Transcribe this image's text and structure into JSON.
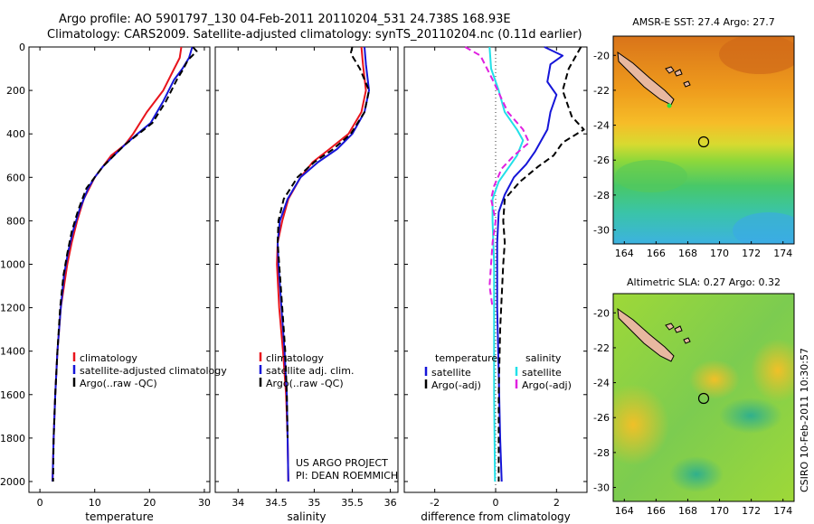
{
  "figure": {
    "title_line1": "Argo profile: AO 5901797_130 04-Feb-2011 20110204_531 24.738S 168.93E",
    "title_line2": "Climatology: CARS2009. Satellite-adjusted climatology: synTS_20110204.nc (0.11d earlier)",
    "side_label": "CSIRO 10-Feb-2011 10:30:57",
    "project_line1": "US ARGO PROJECT",
    "project_line2": "PI: DEAN ROEMMICH"
  },
  "colors": {
    "climatology": "#e8141c",
    "satellite": "#1515d8",
    "argo": "#000000",
    "satellite_sal": "#22e0e8",
    "argo_sal": "#e020e0"
  },
  "chart_data": [
    {
      "type": "line",
      "xlabel": "temperature",
      "ylabel": "",
      "xlim": [
        -2,
        31
      ],
      "ylim": [
        2050,
        0
      ],
      "y_reversed": true,
      "xticks": [
        0,
        10,
        20,
        30
      ],
      "yticks": [
        0,
        200,
        400,
        600,
        800,
        1000,
        1200,
        1400,
        1600,
        1800,
        2000
      ],
      "legend": {
        "position": "lower-right",
        "entries": [
          "climatology",
          "satellite-adjusted climatology",
          "Argo(..raw -QC)"
        ]
      },
      "series": [
        {
          "name": "climatology",
          "color": "#e8141c",
          "dash": "solid",
          "x": [
            25.8,
            25.5,
            24.5,
            22.5,
            19.5,
            17.0,
            15.5,
            13.0,
            11.5,
            10.0,
            9.0,
            8.0,
            6.8,
            5.8,
            5.0,
            4.4,
            3.8,
            3.2,
            2.8,
            2.5,
            2.4,
            2.3
          ],
          "y": [
            0,
            50,
            100,
            200,
            300,
            400,
            450,
            500,
            550,
            600,
            650,
            700,
            800,
            900,
            1000,
            1100,
            1200,
            1400,
            1600,
            1800,
            1900,
            2000
          ]
        },
        {
          "name": "satellite-adjusted climatology",
          "color": "#1515d8",
          "dash": "solid",
          "x": [
            27.8,
            27.2,
            26.0,
            24.5,
            22.5,
            20.2,
            17.8,
            15.5,
            13.5,
            11.5,
            10.0,
            8.8,
            7.2,
            6.0,
            5.1,
            4.4,
            3.8,
            3.2,
            2.8,
            2.5,
            2.4,
            2.3
          ],
          "y": [
            0,
            50,
            100,
            150,
            250,
            350,
            400,
            450,
            500,
            550,
            600,
            650,
            750,
            850,
            950,
            1050,
            1200,
            1400,
            1600,
            1800,
            1900,
            2000
          ]
        },
        {
          "name": "Argo(..raw -QC)",
          "color": "#000000",
          "dash": "dashed",
          "x": [
            27.9,
            28.6,
            27.0,
            26.2,
            25.0,
            23.0,
            20.5,
            18.0,
            15.5,
            13.5,
            11.5,
            10.0,
            8.5,
            7.0,
            5.8,
            5.0,
            4.3,
            3.7,
            3.2,
            2.8,
            2.5,
            2.4
          ],
          "y": [
            0,
            20,
            60,
            100,
            150,
            250,
            350,
            400,
            450,
            500,
            550,
            600,
            650,
            750,
            850,
            950,
            1050,
            1200,
            1400,
            1600,
            1800,
            2000
          ]
        }
      ]
    },
    {
      "type": "line",
      "xlabel": "salinity",
      "ylabel": "",
      "xlim": [
        33.7,
        36.1
      ],
      "ylim": [
        2050,
        0
      ],
      "y_reversed": true,
      "xticks": [
        34,
        34.5,
        35,
        35.5,
        36
      ],
      "yticks": [
        0,
        200,
        400,
        600,
        800,
        1000,
        1200,
        1400,
        1600,
        1800,
        2000
      ],
      "legend": {
        "position": "lower-right",
        "entries": [
          "climatology",
          "satellite adj. clim.",
          "Argo(..raw -QC)"
        ]
      },
      "series": [
        {
          "name": "climatology",
          "color": "#e8141c",
          "dash": "solid",
          "x": [
            35.62,
            35.64,
            35.68,
            35.62,
            35.45,
            35.2,
            34.98,
            34.82,
            34.66,
            34.58,
            34.52,
            34.51,
            34.54,
            34.59,
            34.63,
            34.65,
            34.66
          ],
          "y": [
            0,
            80,
            200,
            300,
            400,
            470,
            530,
            600,
            700,
            800,
            900,
            1000,
            1200,
            1400,
            1600,
            1800,
            2000
          ]
        },
        {
          "name": "satellite adj. clim.",
          "color": "#1515d8",
          "dash": "solid",
          "x": [
            35.66,
            35.68,
            35.72,
            35.66,
            35.5,
            35.3,
            35.05,
            34.82,
            34.65,
            34.55,
            34.52,
            34.53,
            34.57,
            34.61,
            34.64,
            34.65,
            34.66
          ],
          "y": [
            0,
            80,
            200,
            300,
            400,
            470,
            530,
            600,
            700,
            800,
            900,
            1000,
            1200,
            1400,
            1600,
            1800,
            2000
          ]
        },
        {
          "name": "Argo(..raw -QC)",
          "color": "#000000",
          "dash": "dashed",
          "x": [
            35.5,
            35.48,
            35.6,
            35.72,
            35.66,
            35.48,
            35.25,
            35.0,
            34.78,
            34.6,
            34.53,
            34.52,
            34.54,
            34.58,
            34.62,
            34.64,
            34.65
          ],
          "y": [
            0,
            30,
            100,
            200,
            300,
            400,
            470,
            530,
            600,
            700,
            800,
            900,
            1000,
            1200,
            1400,
            1600,
            1800
          ]
        }
      ]
    },
    {
      "type": "line",
      "xlabel": "difference from climatology",
      "ylabel": "",
      "xlim": [
        -3,
        3
      ],
      "ylim": [
        2050,
        0
      ],
      "y_reversed": true,
      "xticks": [
        -2,
        0,
        2
      ],
      "yticks": [
        0,
        200,
        400,
        600,
        800,
        1000,
        1200,
        1400,
        1600,
        1800,
        2000
      ],
      "legend": {
        "position": "lower-center",
        "groups": [
          {
            "heading": "temperature",
            "entries": [
              "satellite",
              "Argo(-adj)"
            ]
          },
          {
            "heading": "salinity",
            "entries": [
              "satellite",
              "Argo(-adj)"
            ]
          }
        ]
      },
      "series": [
        {
          "name": "satellite",
          "group": "temperature",
          "color": "#1515d8",
          "dash": "solid",
          "x": [
            1.6,
            2.2,
            1.8,
            1.7,
            2.0,
            1.8,
            1.7,
            1.5,
            1.3,
            1.0,
            0.6,
            0.3,
            0.1,
            0.05,
            0.05,
            0.1,
            0.15,
            0.2
          ],
          "y": [
            0,
            40,
            80,
            160,
            220,
            300,
            380,
            430,
            480,
            540,
            600,
            680,
            760,
            900,
            1200,
            1500,
            1800,
            2000
          ]
        },
        {
          "name": "Argo(-adj)",
          "group": "temperature",
          "color": "#000000",
          "dash": "dashed",
          "x": [
            2.8,
            2.4,
            2.2,
            2.5,
            2.9,
            2.2,
            1.9,
            1.4,
            0.8,
            0.3,
            0.25,
            0.3,
            0.25,
            0.15,
            0.1,
            0.1
          ],
          "y": [
            0,
            100,
            200,
            320,
            380,
            440,
            500,
            550,
            620,
            700,
            800,
            900,
            1000,
            1300,
            1600,
            2000
          ]
        },
        {
          "name": "satellite",
          "group": "salinity",
          "color": "#22e0e8",
          "dash": "solid",
          "x": [
            -0.2,
            -0.15,
            0.1,
            0.3,
            0.7,
            0.9,
            0.7,
            0.4,
            0.1,
            -0.1,
            -0.1,
            -0.05,
            -0.05,
            -0.05,
            -0.02
          ],
          "y": [
            0,
            100,
            200,
            300,
            380,
            430,
            500,
            560,
            620,
            700,
            800,
            1000,
            1300,
            1600,
            2000
          ]
        },
        {
          "name": "Argo(-adj)",
          "group": "salinity",
          "color": "#e020e0",
          "dash": "dashed",
          "x": [
            -1.0,
            -0.5,
            -0.1,
            0.4,
            0.9,
            1.1,
            0.6,
            0.2,
            -0.05,
            -0.15,
            0.0,
            -0.1,
            -0.2,
            -0.1
          ],
          "y": [
            0,
            40,
            150,
            300,
            380,
            440,
            500,
            560,
            640,
            700,
            800,
            900,
            1100,
            1200
          ]
        }
      ]
    },
    {
      "type": "heatmap",
      "title": "AMSR-E SST: 27.4  Argo: 27.7",
      "xlim": [
        163.3,
        174.7
      ],
      "ylim": [
        -30.8,
        -18.9
      ],
      "xticks": [
        164,
        166,
        168,
        170,
        172,
        174
      ],
      "yticks": [
        -20,
        -22,
        -24,
        -26,
        -28,
        -30
      ],
      "profile_location": {
        "lon": 168.93,
        "lat": -24.738
      }
    },
    {
      "type": "heatmap",
      "title": "Altimetric SLA: 0.27  Argo: 0.32",
      "xlim": [
        163.3,
        174.7
      ],
      "ylim": [
        -30.8,
        -18.9
      ],
      "xticks": [
        164,
        166,
        168,
        170,
        172,
        174
      ],
      "yticks": [
        -20,
        -22,
        -24,
        -26,
        -28,
        -30
      ],
      "profile_location": {
        "lon": 168.93,
        "lat": -24.738
      }
    }
  ]
}
